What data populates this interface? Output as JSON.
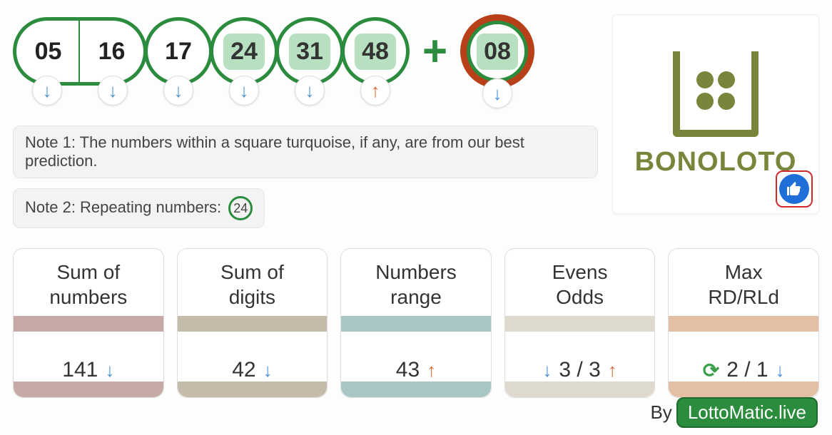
{
  "balls": [
    {
      "value": "05",
      "predicted": false,
      "trend": "down",
      "shape": "pill-left"
    },
    {
      "value": "16",
      "predicted": false,
      "trend": "down",
      "shape": "pill-right"
    },
    {
      "value": "17",
      "predicted": false,
      "trend": "down",
      "shape": "circle"
    },
    {
      "value": "24",
      "predicted": true,
      "trend": "down",
      "shape": "circle"
    },
    {
      "value": "31",
      "predicted": true,
      "trend": "down",
      "shape": "circle"
    },
    {
      "value": "48",
      "predicted": true,
      "trend": "up",
      "shape": "circle"
    }
  ],
  "bonus": {
    "value": "08",
    "predicted": true,
    "trend": "down"
  },
  "plus_sign": "+",
  "notes": {
    "note1": "Note 1: The numbers within a square turquoise, if any, are from our best prediction.",
    "note2_prefix": "Note 2: Repeating numbers:",
    "note2_repeating": "24"
  },
  "logo": {
    "brand": "BONOLOTO"
  },
  "stats": [
    {
      "title": "Sum of\nnumbers",
      "bar_color": "#c7a9a5",
      "value_html": "141",
      "trend_after": "down"
    },
    {
      "title": "Sum of\ndigits",
      "bar_color": "#c4bbab",
      "value_html": "42",
      "trend_after": "down"
    },
    {
      "title": "Numbers\nrange",
      "bar_color": "#a9c6c5",
      "value_html": "43",
      "trend_after": "up"
    },
    {
      "title": "Evens\nOdds",
      "bar_color": "#ded9cd",
      "value_html": "3 / 3",
      "trend_before": "down",
      "trend_after": "up"
    },
    {
      "title": "Max\nRD/RLd",
      "bar_color": "#e3c0a3",
      "value_html": "2 / 1",
      "sync_before": true,
      "trend_after": "down"
    }
  ],
  "footer": {
    "by": "By",
    "site": "LottoMatic.live"
  },
  "colors": {
    "ball_border": "#2a8c3c",
    "bonus_border": "#b84018",
    "pred_bg": "#b7e0c1",
    "arrow_down": "#4a90d9",
    "arrow_up": "#d86f3a",
    "logo": "#77863a",
    "like_bg": "#1f6fd8",
    "like_border": "#d02c2c"
  },
  "arrow_glyphs": {
    "down": "↓",
    "up": "↑",
    "sync": "⟳"
  }
}
